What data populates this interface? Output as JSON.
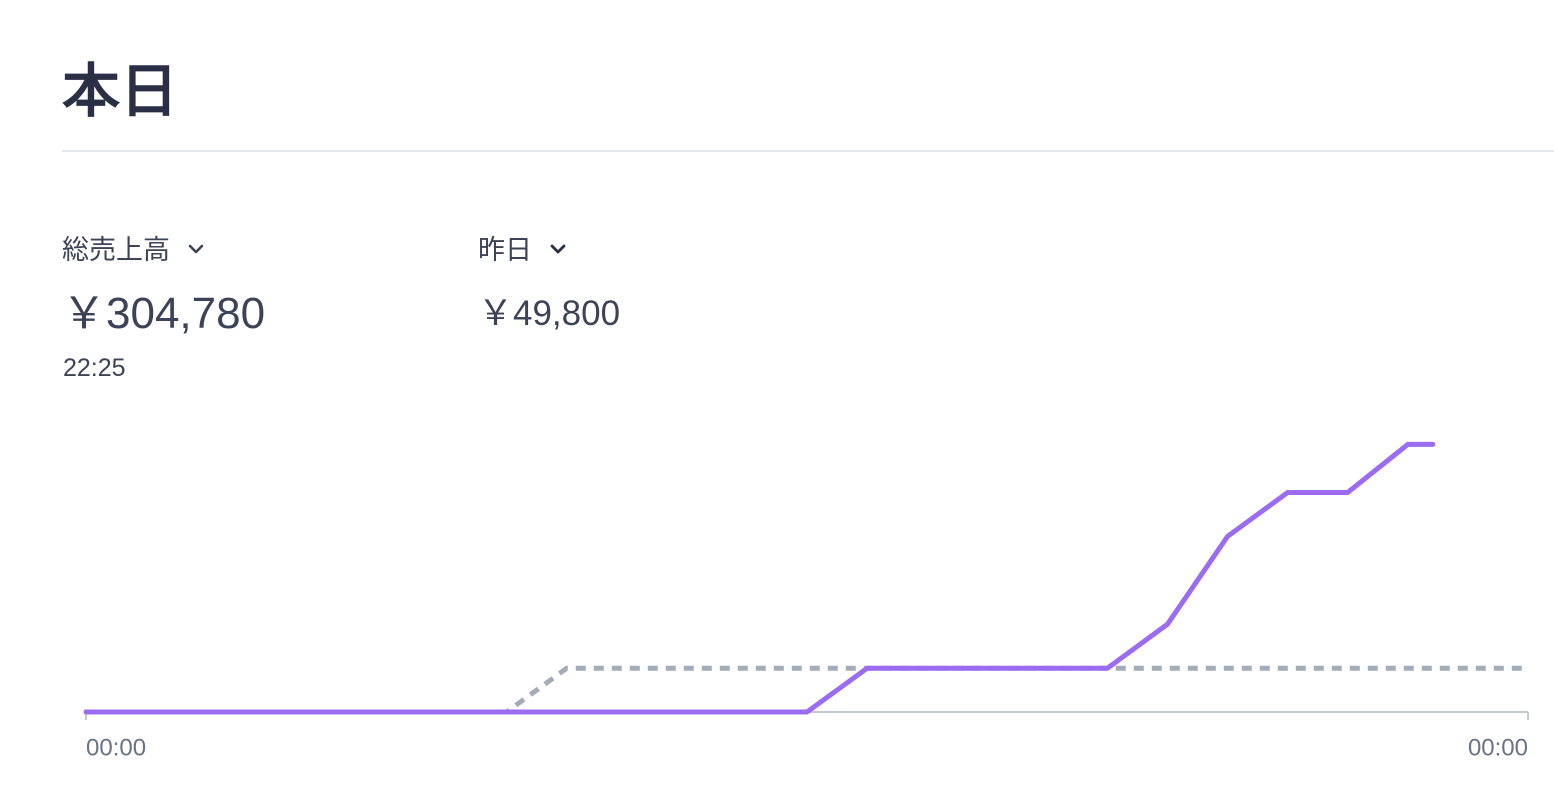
{
  "header": {
    "title": "本日"
  },
  "metrics": [
    {
      "label": "総売上高",
      "value": "￥304,780",
      "time": "22:25"
    },
    {
      "label": "昨日",
      "value": "￥49,800"
    }
  ],
  "chart_data": {
    "type": "line",
    "xlim": [
      "00:00",
      "24:00"
    ],
    "xticks": [
      {
        "value": "00:00",
        "label": "00:00"
      },
      {
        "value": "24:00",
        "label": "00:00"
      }
    ],
    "ylim": [
      0,
      320000
    ],
    "series": [
      {
        "color": "#a3acb9",
        "dashed": true,
        "x": [
          "00:00",
          "07:00",
          "08:00",
          "24:00"
        ],
        "values": [
          0,
          0,
          49800,
          49800
        ]
      },
      {
        "color": "#9b6cf2",
        "dashed": false,
        "x": [
          "00:00",
          "12:00",
          "13:00",
          "17:00",
          "18:00",
          "19:00",
          "20:00",
          "21:00",
          "22:00",
          "22:25"
        ],
        "values": [
          0,
          0,
          49800,
          49800,
          100000,
          200000,
          250000,
          250000,
          304780,
          304780
        ]
      }
    ]
  }
}
